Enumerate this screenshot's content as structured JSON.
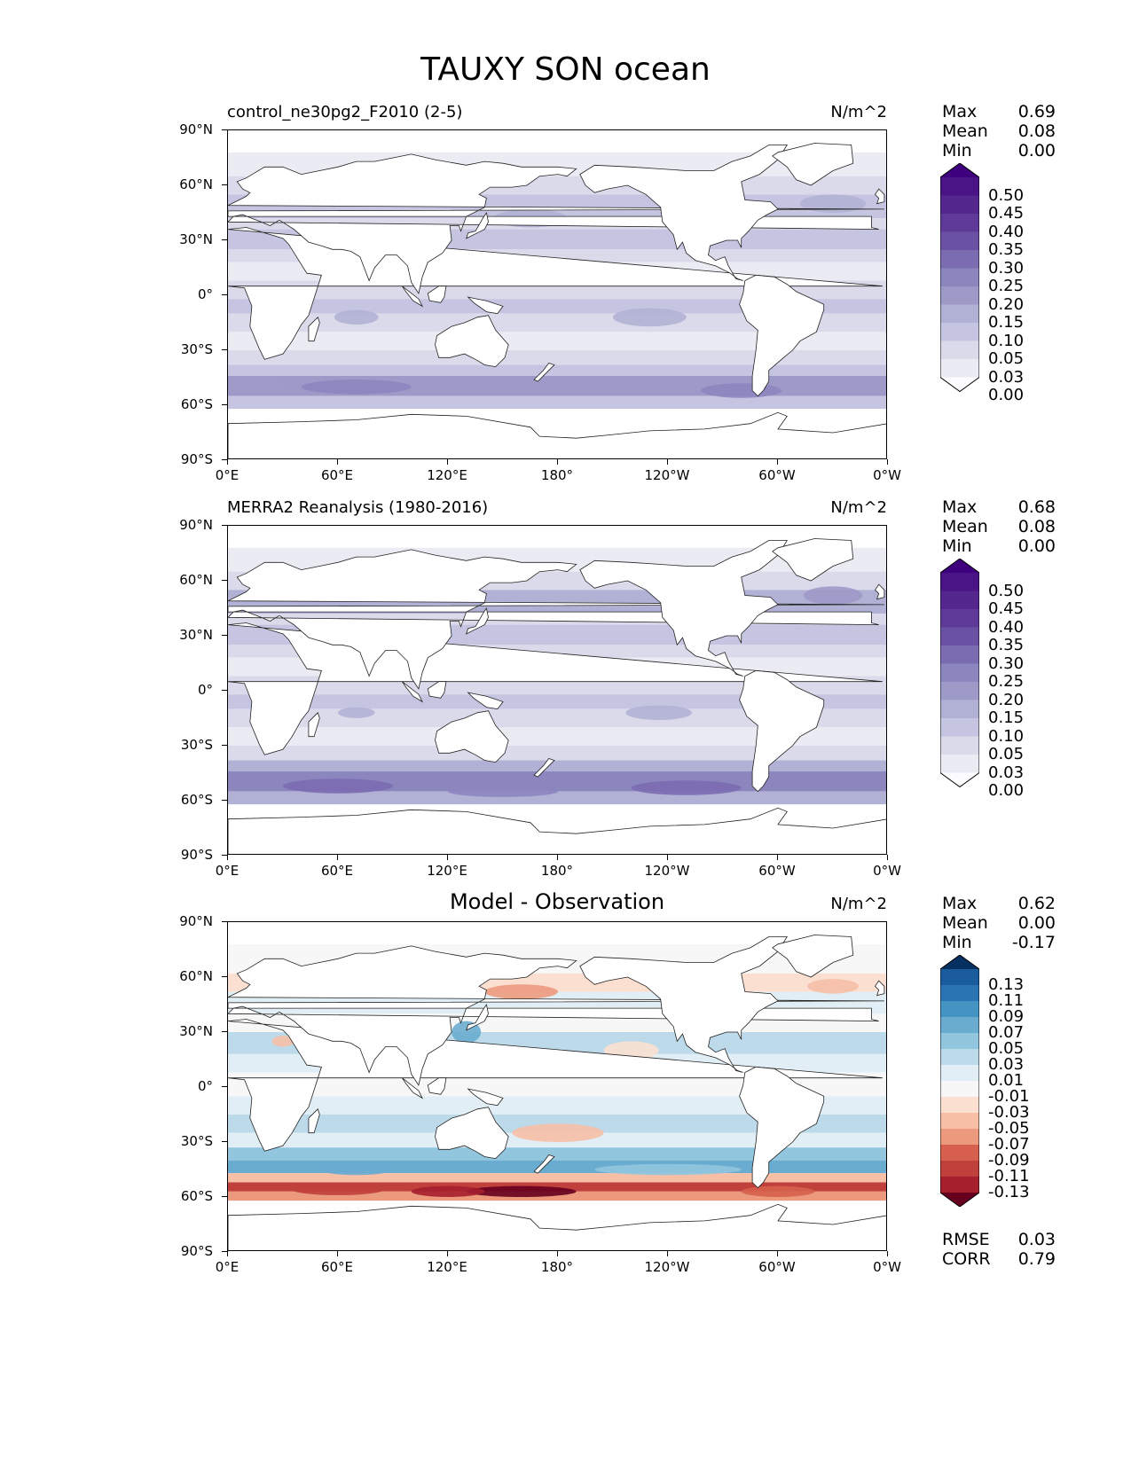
{
  "figure": {
    "title": "TAUXY SON ocean"
  },
  "axes": {
    "y_ticks": [
      "90°N",
      "60°N",
      "30°N",
      "0°",
      "30°S",
      "60°S",
      "90°S"
    ],
    "x_ticks": [
      "0°E",
      "60°E",
      "120°E",
      "180°",
      "120°W",
      "60°W",
      "0°W"
    ]
  },
  "panels": [
    {
      "title": "control_ne30pg2_F2010 (2-5)",
      "units": "N/m^2",
      "stats": {
        "max_label": "Max",
        "max": "0.69",
        "mean_label": "Mean",
        "mean": "0.08",
        "min_label": "Min",
        "min": "0.00"
      },
      "colorbar": {
        "labels": [
          "0.50",
          "0.45",
          "0.40",
          "0.35",
          "0.30",
          "0.25",
          "0.20",
          "0.15",
          "0.10",
          "0.05",
          "0.03",
          "0.00"
        ],
        "colors": [
          "#3f007d",
          "#4a1486",
          "#54278f",
          "#5f3a98",
          "#6a51a3",
          "#7b6bb1",
          "#8c86bf",
          "#9e9ac8",
          "#b1b1d5",
          "#c5c5e2",
          "#dadaeb",
          "#ebebf4",
          "#fcfbfd"
        ]
      },
      "map_style": "model"
    },
    {
      "title": "MERRA2 Reanalysis (1980-2016)",
      "units": "N/m^2",
      "stats": {
        "max_label": "Max",
        "max": "0.68",
        "mean_label": "Mean",
        "mean": "0.08",
        "min_label": "Min",
        "min": "0.00"
      },
      "colorbar": {
        "labels": [
          "0.50",
          "0.45",
          "0.40",
          "0.35",
          "0.30",
          "0.25",
          "0.20",
          "0.15",
          "0.10",
          "0.05",
          "0.03",
          "0.00"
        ],
        "colors": [
          "#3f007d",
          "#4a1486",
          "#54278f",
          "#5f3a98",
          "#6a51a3",
          "#7b6bb1",
          "#8c86bf",
          "#9e9ac8",
          "#b1b1d5",
          "#c5c5e2",
          "#dadaeb",
          "#ebebf4",
          "#fcfbfd"
        ]
      },
      "map_style": "obs"
    },
    {
      "title": "Model - Observation",
      "units": "N/m^2",
      "stats": {
        "max_label": "Max",
        "max": "0.62",
        "mean_label": "Mean",
        "mean": "0.00",
        "min_label": "Min",
        "min": "-0.17"
      },
      "colorbar": {
        "labels": [
          "0.13",
          "0.11",
          "0.09",
          "0.07",
          "0.05",
          "0.03",
          "0.01",
          "-0.01",
          "-0.03",
          "-0.05",
          "-0.07",
          "-0.09",
          "-0.11",
          "-0.13"
        ],
        "colors": [
          "#053061",
          "#1a5c9c",
          "#2b74b3",
          "#4393c3",
          "#6aacd0",
          "#92c5de",
          "#bcdaea",
          "#e2eef5",
          "#f7f7f7",
          "#fbe0d1",
          "#f6bfa6",
          "#ec9a7d",
          "#d6604d",
          "#c0403c",
          "#a51f2d",
          "#67001f"
        ]
      },
      "map_style": "diff",
      "rmse": {
        "rmse_label": "RMSE",
        "rmse": "0.03",
        "corr_label": "CORR",
        "corr": "0.79"
      }
    }
  ]
}
